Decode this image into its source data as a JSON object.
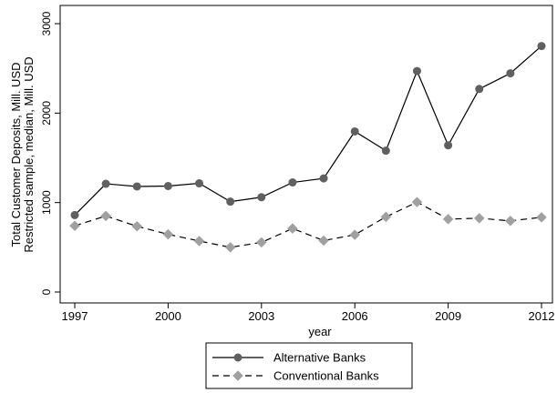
{
  "chart_data": {
    "type": "line",
    "xlabel": "year",
    "ylabel_lines": [
      "Total Customer Deposits, Mill. USD",
      "Restricted sample, median, Mill. USD"
    ],
    "x_ticks": [
      1997,
      2000,
      2003,
      2006,
      2009,
      2012
    ],
    "x_tick_labels": [
      "1997",
      "2000",
      "2003",
      "2006",
      "2009",
      "2012"
    ],
    "y_ticks": [
      0,
      1000,
      2000,
      3000
    ],
    "y_tick_labels": [
      "0",
      "1000",
      "2000",
      "3000"
    ],
    "xlim": [
      1997,
      2012
    ],
    "ylim": [
      0,
      3000
    ],
    "grid": false,
    "legend_position": "bottom-center",
    "x": [
      1997,
      1998,
      1999,
      2000,
      2001,
      2002,
      2003,
      2004,
      2005,
      2006,
      2007,
      2008,
      2009,
      2010,
      2011,
      2012
    ],
    "series": [
      {
        "name": "Alternative Banks",
        "color": "#606060",
        "line_style": "solid",
        "marker": "circle",
        "values": [
          860,
          1210,
          1180,
          1185,
          1215,
          1010,
          1060,
          1225,
          1270,
          1795,
          1580,
          2470,
          1640,
          2270,
          2445,
          2750
        ]
      },
      {
        "name": "Conventional Banks",
        "color": "#a0a0a0",
        "line_style": "dashed",
        "marker": "diamond",
        "values": [
          740,
          850,
          735,
          645,
          570,
          500,
          555,
          710,
          575,
          640,
          840,
          1005,
          815,
          825,
          795,
          835
        ]
      }
    ]
  }
}
